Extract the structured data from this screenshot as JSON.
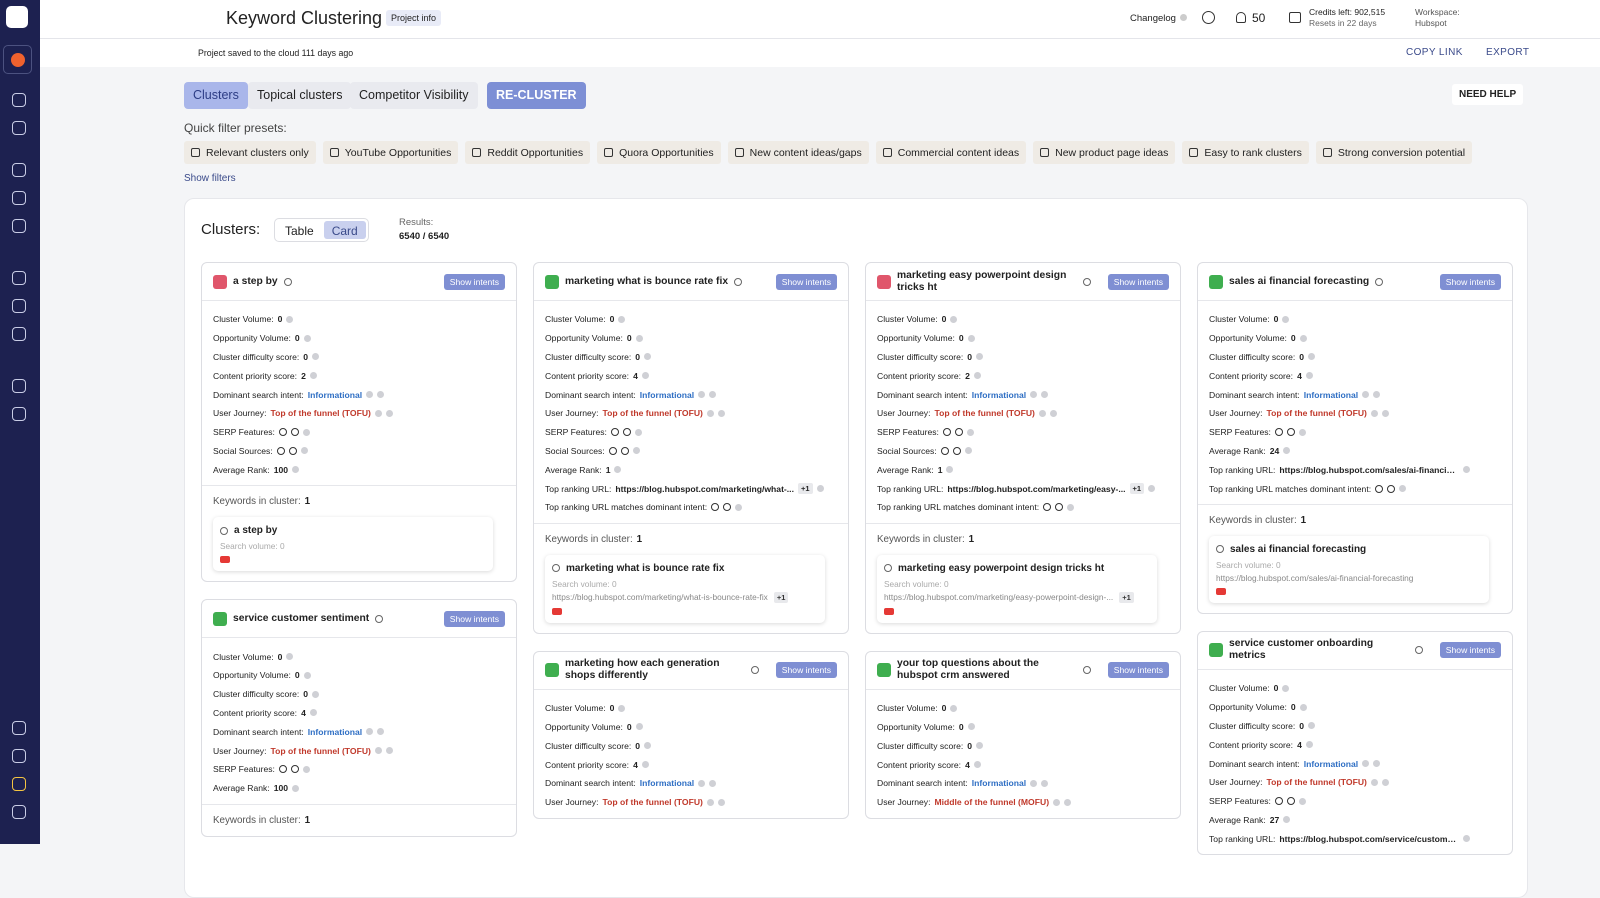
{
  "header": {
    "title": "Keyword Clustering",
    "project_info": "Project info",
    "changelog": "Changelog",
    "notifications": "50",
    "credits": "Credits left: 902,515",
    "resets": "Resets in 22 days",
    "workspace_label": "Workspace:",
    "workspace": "Hubspot"
  },
  "subheader": {
    "saved": "Project saved to the cloud 111 days ago",
    "copy_link": "COPY LINK",
    "export": "EXPORT"
  },
  "tabs": [
    "Clusters",
    "Topical clusters",
    "Competitor Visibility"
  ],
  "recluster": "RE-CLUSTER",
  "need_help": "NEED HELP",
  "quick_filter_label": "Quick filter presets:",
  "presets": [
    "Relevant clusters only",
    "YouTube Opportunities",
    "Reddit Opportunities",
    "Quora Opportunities",
    "New content ideas/gaps",
    "Commercial content ideas",
    "New product page ideas",
    "Easy to rank clusters",
    "Strong conversion potential"
  ],
  "show_filters": "Show filters",
  "panel": {
    "title": "Clusters:",
    "views": [
      "Table",
      "Card"
    ],
    "results_label": "Results:",
    "results": "6540 / 6540"
  },
  "columns": [
    [
      {
        "title": "a step by",
        "badge_color": "#e0566b",
        "show_intents": "Show intents",
        "fields": [
          {
            "label": "Cluster Volume:",
            "value": 0
          },
          {
            "label": "Opportunity Volume:",
            "value": 0
          },
          {
            "label": "Cluster difficulty score:",
            "value": 0
          },
          {
            "label": "Content priority score:",
            "value": 2
          },
          {
            "label": "Dominant search intent:",
            "value": "Informational",
            "color": "#2f6fc4"
          },
          {
            "label": "User Journey:",
            "value": "Top of the funnel (TOFU)",
            "color": "#c0392b"
          },
          {
            "label": "SERP Features:"
          },
          {
            "label": "Social Sources:"
          },
          {
            "label": "Average Rank:",
            "value": 100
          }
        ],
        "keywords_label": "Keywords in cluster:",
        "keywords_count": 1,
        "keyword": {
          "name": "a step by",
          "volume": "Search volume: 0"
        }
      },
      {
        "title": "service customer sentiment",
        "badge_color": "#3fae4f",
        "show_intents": "Show intents",
        "fields": [
          {
            "label": "Cluster Volume:",
            "value": 0
          },
          {
            "label": "Opportunity Volume:",
            "value": 0
          },
          {
            "label": "Cluster difficulty score:",
            "value": 0
          },
          {
            "label": "Content priority score:",
            "value": 4
          },
          {
            "label": "Dominant search intent:",
            "value": "Informational",
            "color": "#2f6fc4"
          },
          {
            "label": "User Journey:",
            "value": "Top of the funnel (TOFU)",
            "color": "#c0392b"
          },
          {
            "label": "SERP Features:"
          },
          {
            "label": "Average Rank:",
            "value": 100
          }
        ],
        "keywords_label": "Keywords in cluster:",
        "keywords_count": 1
      }
    ],
    [
      {
        "title": "marketing what is bounce rate fix",
        "badge_color": "#3fae4f",
        "show_intents": "Show intents",
        "fields": [
          {
            "label": "Cluster Volume:",
            "value": 0
          },
          {
            "label": "Opportunity Volume:",
            "value": 0
          },
          {
            "label": "Cluster difficulty score:",
            "value": 0
          },
          {
            "label": "Content priority score:",
            "value": 4
          },
          {
            "label": "Dominant search intent:",
            "value": "Informational",
            "color": "#2f6fc4"
          },
          {
            "label": "User Journey:",
            "value": "Top of the funnel (TOFU)",
            "color": "#c0392b"
          },
          {
            "label": "SERP Features:"
          },
          {
            "label": "Social Sources:"
          },
          {
            "label": "Average Rank:",
            "value": 1
          },
          {
            "label": "Top ranking URL:",
            "value": "https://blog.hubspot.com/marketing/what-...",
            "extra": "+1"
          },
          {
            "label": "Top ranking URL matches dominant intent:"
          }
        ],
        "keywords_label": "Keywords in cluster:",
        "keywords_count": 1,
        "keyword": {
          "name": "marketing what is bounce rate fix",
          "volume": "Search volume: 0",
          "url": "https://blog.hubspot.com/marketing/what-is-bounce-rate-fix",
          "extra": "+1"
        }
      },
      {
        "title": "marketing how each generation shops differently",
        "badge_color": "#3fae4f",
        "show_intents": "Show intents",
        "fields": [
          {
            "label": "Cluster Volume:",
            "value": 0
          },
          {
            "label": "Opportunity Volume:",
            "value": 0
          },
          {
            "label": "Cluster difficulty score:",
            "value": 0
          },
          {
            "label": "Content priority score:",
            "value": 4
          },
          {
            "label": "Dominant search intent:",
            "value": "Informational",
            "color": "#2f6fc4"
          },
          {
            "label": "User Journey:",
            "value": "Top of the funnel (TOFU)",
            "color": "#c0392b"
          }
        ]
      }
    ],
    [
      {
        "title": "marketing easy powerpoint design tricks ht",
        "badge_color": "#e0566b",
        "show_intents": "Show intents",
        "fields": [
          {
            "label": "Cluster Volume:",
            "value": 0
          },
          {
            "label": "Opportunity Volume:",
            "value": 0
          },
          {
            "label": "Cluster difficulty score:",
            "value": 0
          },
          {
            "label": "Content priority score:",
            "value": 2
          },
          {
            "label": "Dominant search intent:",
            "value": "Informational",
            "color": "#2f6fc4"
          },
          {
            "label": "User Journey:",
            "value": "Top of the funnel (TOFU)",
            "color": "#c0392b"
          },
          {
            "label": "SERP Features:"
          },
          {
            "label": "Social Sources:"
          },
          {
            "label": "Average Rank:",
            "value": 1
          },
          {
            "label": "Top ranking URL:",
            "value": "https://blog.hubspot.com/marketing/easy-...",
            "extra": "+1"
          },
          {
            "label": "Top ranking URL matches dominant intent:"
          }
        ],
        "keywords_label": "Keywords in cluster:",
        "keywords_count": 1,
        "keyword": {
          "name": "marketing easy powerpoint design tricks ht",
          "volume": "Search volume: 0",
          "url": "https://blog.hubspot.com/marketing/easy-powerpoint-design-...",
          "extra": "+1"
        }
      },
      {
        "title": "your top questions about the hubspot crm answered",
        "badge_color": "#3fae4f",
        "show_intents": "Show intents",
        "fields": [
          {
            "label": "Cluster Volume:",
            "value": 0
          },
          {
            "label": "Opportunity Volume:",
            "value": 0
          },
          {
            "label": "Cluster difficulty score:",
            "value": 0
          },
          {
            "label": "Content priority score:",
            "value": 4
          },
          {
            "label": "Dominant search intent:",
            "value": "Informational",
            "color": "#2f6fc4"
          },
          {
            "label": "User Journey:",
            "value": "Middle of the funnel (MOFU)",
            "color": "#c0392b"
          }
        ]
      }
    ],
    [
      {
        "title": "sales ai financial forecasting",
        "badge_color": "#3fae4f",
        "show_intents": "Show intents",
        "fields": [
          {
            "label": "Cluster Volume:",
            "value": 0
          },
          {
            "label": "Opportunity Volume:",
            "value": 0
          },
          {
            "label": "Cluster difficulty score:",
            "value": 0
          },
          {
            "label": "Content priority score:",
            "value": 4
          },
          {
            "label": "Dominant search intent:",
            "value": "Informational",
            "color": "#2f6fc4"
          },
          {
            "label": "User Journey:",
            "value": "Top of the funnel (TOFU)",
            "color": "#c0392b"
          },
          {
            "label": "SERP Features:"
          },
          {
            "label": "Average Rank:",
            "value": 24
          },
          {
            "label": "Top ranking URL:",
            "value": "https://blog.hubspot.com/sales/ai-financial-for..."
          },
          {
            "label": "Top ranking URL matches dominant intent:"
          }
        ],
        "keywords_label": "Keywords in cluster:",
        "keywords_count": 1,
        "keyword": {
          "name": "sales ai financial forecasting",
          "volume": "Search volume: 0",
          "url": "https://blog.hubspot.com/sales/ai-financial-forecasting"
        }
      },
      {
        "title": "service customer onboarding metrics",
        "badge_color": "#3fae4f",
        "show_intents": "Show intents",
        "fields": [
          {
            "label": "Cluster Volume:",
            "value": 0
          },
          {
            "label": "Opportunity Volume:",
            "value": 0
          },
          {
            "label": "Cluster difficulty score:",
            "value": 0
          },
          {
            "label": "Content priority score:",
            "value": 4
          },
          {
            "label": "Dominant search intent:",
            "value": "Informational",
            "color": "#2f6fc4"
          },
          {
            "label": "User Journey:",
            "value": "Top of the funnel (TOFU)",
            "color": "#c0392b"
          },
          {
            "label": "SERP Features:"
          },
          {
            "label": "Average Rank:",
            "value": 27
          },
          {
            "label": "Top ranking URL:",
            "value": "https://blog.hubspot.com/service/customer-on..."
          }
        ]
      }
    ]
  ]
}
